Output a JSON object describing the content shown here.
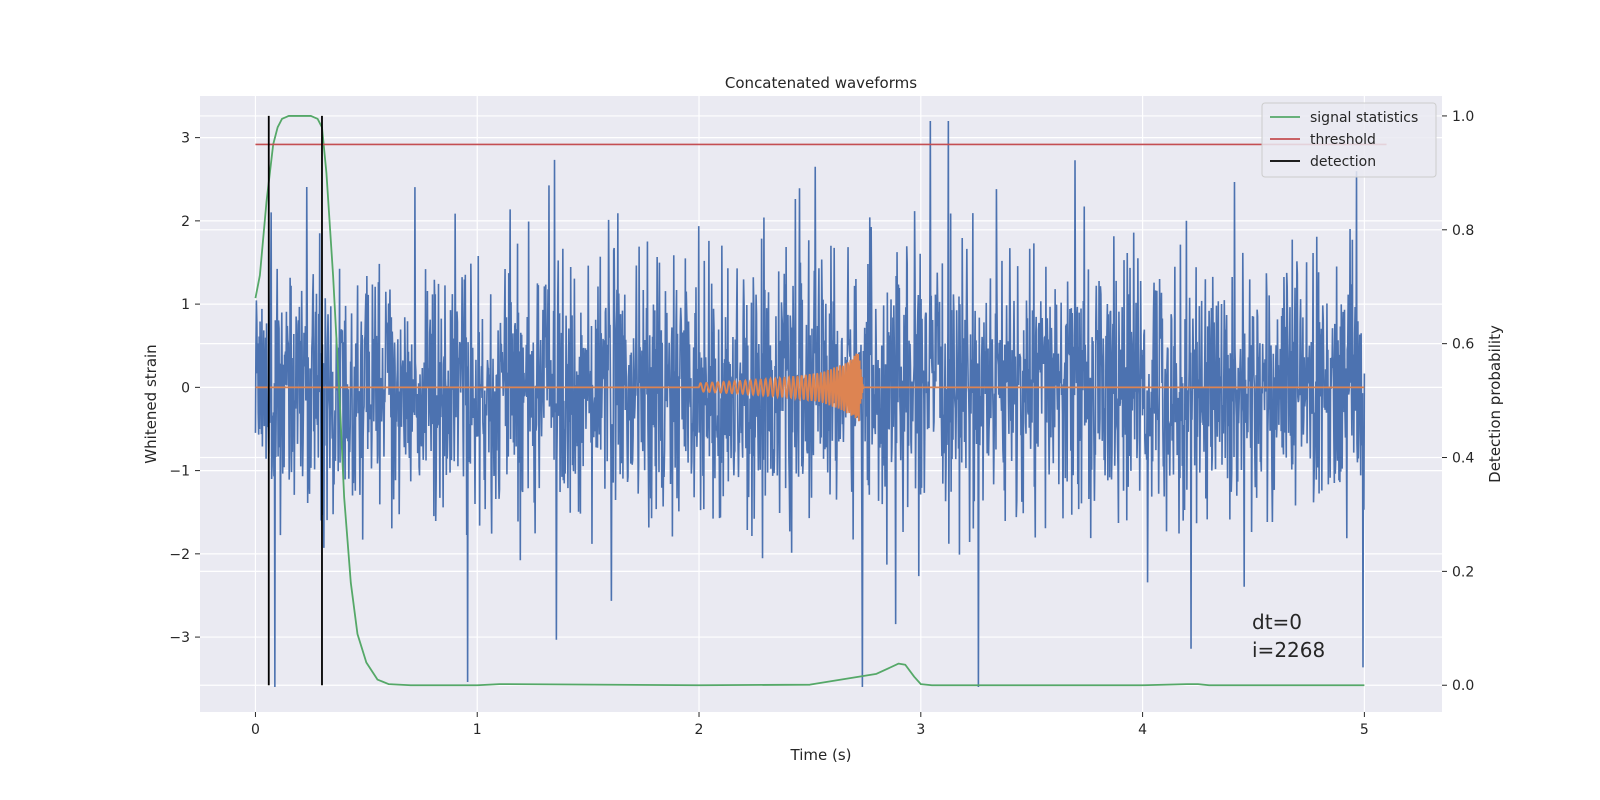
{
  "chart_data": {
    "type": "line",
    "title": "Concatenated waveforms",
    "xlabel": "Time (s)",
    "ylabel": "Whitened strain",
    "ylabel_right": "Detection probability",
    "xlim": [
      -0.25,
      5.35
    ],
    "ylim": [
      -3.9,
      3.5
    ],
    "ylim_right": [
      -0.047,
      1.035
    ],
    "x_ticks": [
      0,
      1,
      2,
      3,
      4,
      5
    ],
    "x_tick_labels": [
      "0",
      "1",
      "2",
      "3",
      "4",
      "5"
    ],
    "y_ticks": [
      -3,
      -2,
      -1,
      0,
      1,
      2,
      3
    ],
    "y_tick_labels": [
      "−3",
      "−2",
      "−1",
      "0",
      "1",
      "2",
      "3"
    ],
    "y_right_ticks": [
      0.0,
      0.2,
      0.4,
      0.6,
      0.8,
      1.0
    ],
    "y_right_tick_labels": [
      "0.0",
      "0.2",
      "0.4",
      "0.6",
      "0.8",
      "1.0"
    ],
    "grid": true,
    "legend_position": "top-right",
    "legend": [
      {
        "label": "signal statistics",
        "color": "#55a868"
      },
      {
        "label": "threshold",
        "color": "#c44e52"
      },
      {
        "label": "detection",
        "color": "#000000"
      }
    ],
    "annotation": {
      "lines": [
        "dt=0",
        "i=2268"
      ],
      "x": 4.5,
      "y": -3.1
    },
    "colors": {
      "strain": "#4c72b0",
      "template": "#dd8452",
      "signal_statistics": "#55a868",
      "threshold": "#c44e52",
      "detection": "#000000",
      "plot_background": "#eaeaf2",
      "grid": "#ffffff"
    },
    "series": [
      {
        "name": "",
        "axis": "left",
        "color": "#4c72b0",
        "description_values": "whitened strain noise, 0 to 5 s, amplitude mostly within ±2.5",
        "x_range": [
          0,
          5
        ],
        "y_range": [
          -3.6,
          3.2
        ]
      },
      {
        "name": "",
        "axis": "left",
        "color": "#dd8452",
        "x": [
          0,
          2.0,
          2.2,
          2.4,
          2.55,
          2.65,
          2.7,
          2.72,
          2.74,
          5
        ],
        "envelope": [
          0,
          0.05,
          0.08,
          0.12,
          0.18,
          0.28,
          0.38,
          0.45,
          0.0,
          0
        ]
      },
      {
        "name": "signal statistics",
        "axis": "right",
        "color": "#55a868",
        "x": [
          0.0,
          0.02,
          0.05,
          0.08,
          0.1,
          0.12,
          0.15,
          0.2,
          0.25,
          0.28,
          0.3,
          0.32,
          0.35,
          0.38,
          0.4,
          0.43,
          0.46,
          0.5,
          0.55,
          0.6,
          0.7,
          1.0,
          1.1,
          2.0,
          2.5,
          2.8,
          2.9,
          2.93,
          2.97,
          3.0,
          3.05,
          3.5,
          4.0,
          4.2,
          4.25,
          4.3,
          5.0
        ],
        "y": [
          0.68,
          0.72,
          0.85,
          0.95,
          0.98,
          0.995,
          1.0,
          1.0,
          1.0,
          0.995,
          0.98,
          0.9,
          0.72,
          0.5,
          0.33,
          0.18,
          0.09,
          0.04,
          0.01,
          0.002,
          0.0,
          0.0,
          0.002,
          0.0,
          0.001,
          0.02,
          0.038,
          0.036,
          0.015,
          0.002,
          0.0,
          0.0,
          0.0,
          0.002,
          0.002,
          0.0,
          0.0
        ]
      },
      {
        "name": "threshold",
        "axis": "right",
        "color": "#c44e52",
        "x": [
          0,
          5.1
        ],
        "y": [
          0.95,
          0.95
        ]
      }
    ],
    "detections": [
      0.06,
      0.3
    ],
    "detection_y_range": [
      0.0,
      1.0
    ]
  }
}
